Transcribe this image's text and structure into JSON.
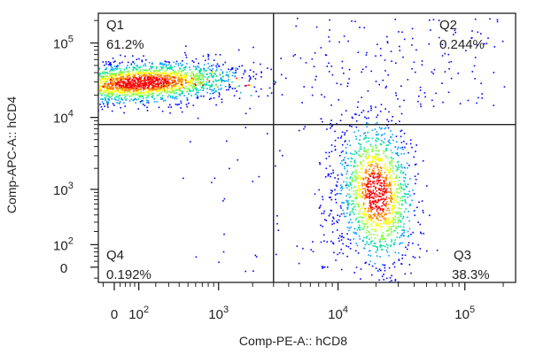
{
  "chart_data": {
    "type": "scatter",
    "xlabel": "Comp-PE-A:: hCD8",
    "ylabel": "Comp-APC-A:: hCD4",
    "x_ticks": [
      {
        "value": "0",
        "base": "0",
        "exp": ""
      },
      {
        "value": "10^2",
        "base": "10",
        "exp": "2"
      },
      {
        "value": "10^3",
        "base": "10",
        "exp": "3"
      },
      {
        "value": "10^4",
        "base": "10",
        "exp": "4"
      },
      {
        "value": "10^5",
        "base": "10",
        "exp": "5"
      }
    ],
    "y_ticks": [
      {
        "value": "0",
        "base": "0",
        "exp": ""
      },
      {
        "value": "10^2",
        "base": "10",
        "exp": "2"
      },
      {
        "value": "10^3",
        "base": "10",
        "exp": "3"
      },
      {
        "value": "10^4",
        "base": "10",
        "exp": "4"
      },
      {
        "value": "10^5",
        "base": "10",
        "exp": "5"
      }
    ],
    "axis_scale": "biexponential",
    "gates": {
      "x_threshold": 3000,
      "y_threshold": 8000
    },
    "quadrants": [
      {
        "name": "Q1",
        "percent": "61.2%"
      },
      {
        "name": "Q2",
        "percent": "0.244%"
      },
      {
        "name": "Q3",
        "percent": "38.3%"
      },
      {
        "name": "Q4",
        "percent": "0.192%"
      }
    ],
    "populations": [
      {
        "quadrant": "Q1",
        "center_x": 120,
        "center_y": 30000,
        "event_share": 0.612
      },
      {
        "quadrant": "Q3",
        "center_x": 20000,
        "center_y": 900,
        "event_share": 0.383
      }
    ],
    "colormap": [
      "#0000ff",
      "#00a0ff",
      "#00e0a0",
      "#80ff40",
      "#ffff00",
      "#ff8000",
      "#ff0000"
    ]
  }
}
